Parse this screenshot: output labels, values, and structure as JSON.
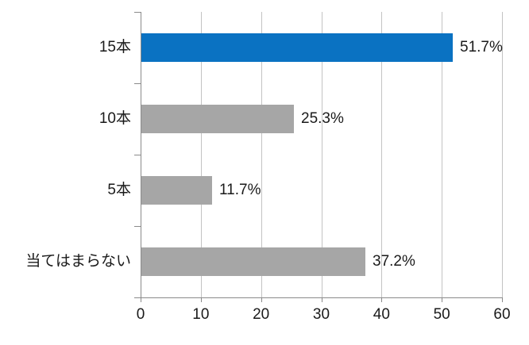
{
  "chart_data": {
    "type": "bar",
    "orientation": "horizontal",
    "title": "",
    "xlabel": "",
    "ylabel": "",
    "categories": [
      "15本",
      "10本",
      "5本",
      "当てはまらない"
    ],
    "values": [
      51.7,
      25.3,
      11.7,
      37.2
    ],
    "data_labels": [
      "51.7%",
      "25.3%",
      "11.7%",
      "37.2%"
    ],
    "data_label_position": "outside-end",
    "xlim": [
      0,
      60
    ],
    "x_ticks": [
      "0",
      "10",
      "20",
      "30",
      "40",
      "50",
      "60"
    ],
    "grid": "vertical-major",
    "legend_position": "none",
    "colors": {
      "highlight_bar": "#0a72c2",
      "default_bar": "#a6a6a6",
      "gridline": "#c3c3c3",
      "axis_line": "#8a8a8a",
      "text": "#1a1a1a",
      "background": "#ffffff"
    },
    "bar_color_keys": [
      "highlight_bar",
      "default_bar",
      "default_bar",
      "default_bar"
    ]
  }
}
